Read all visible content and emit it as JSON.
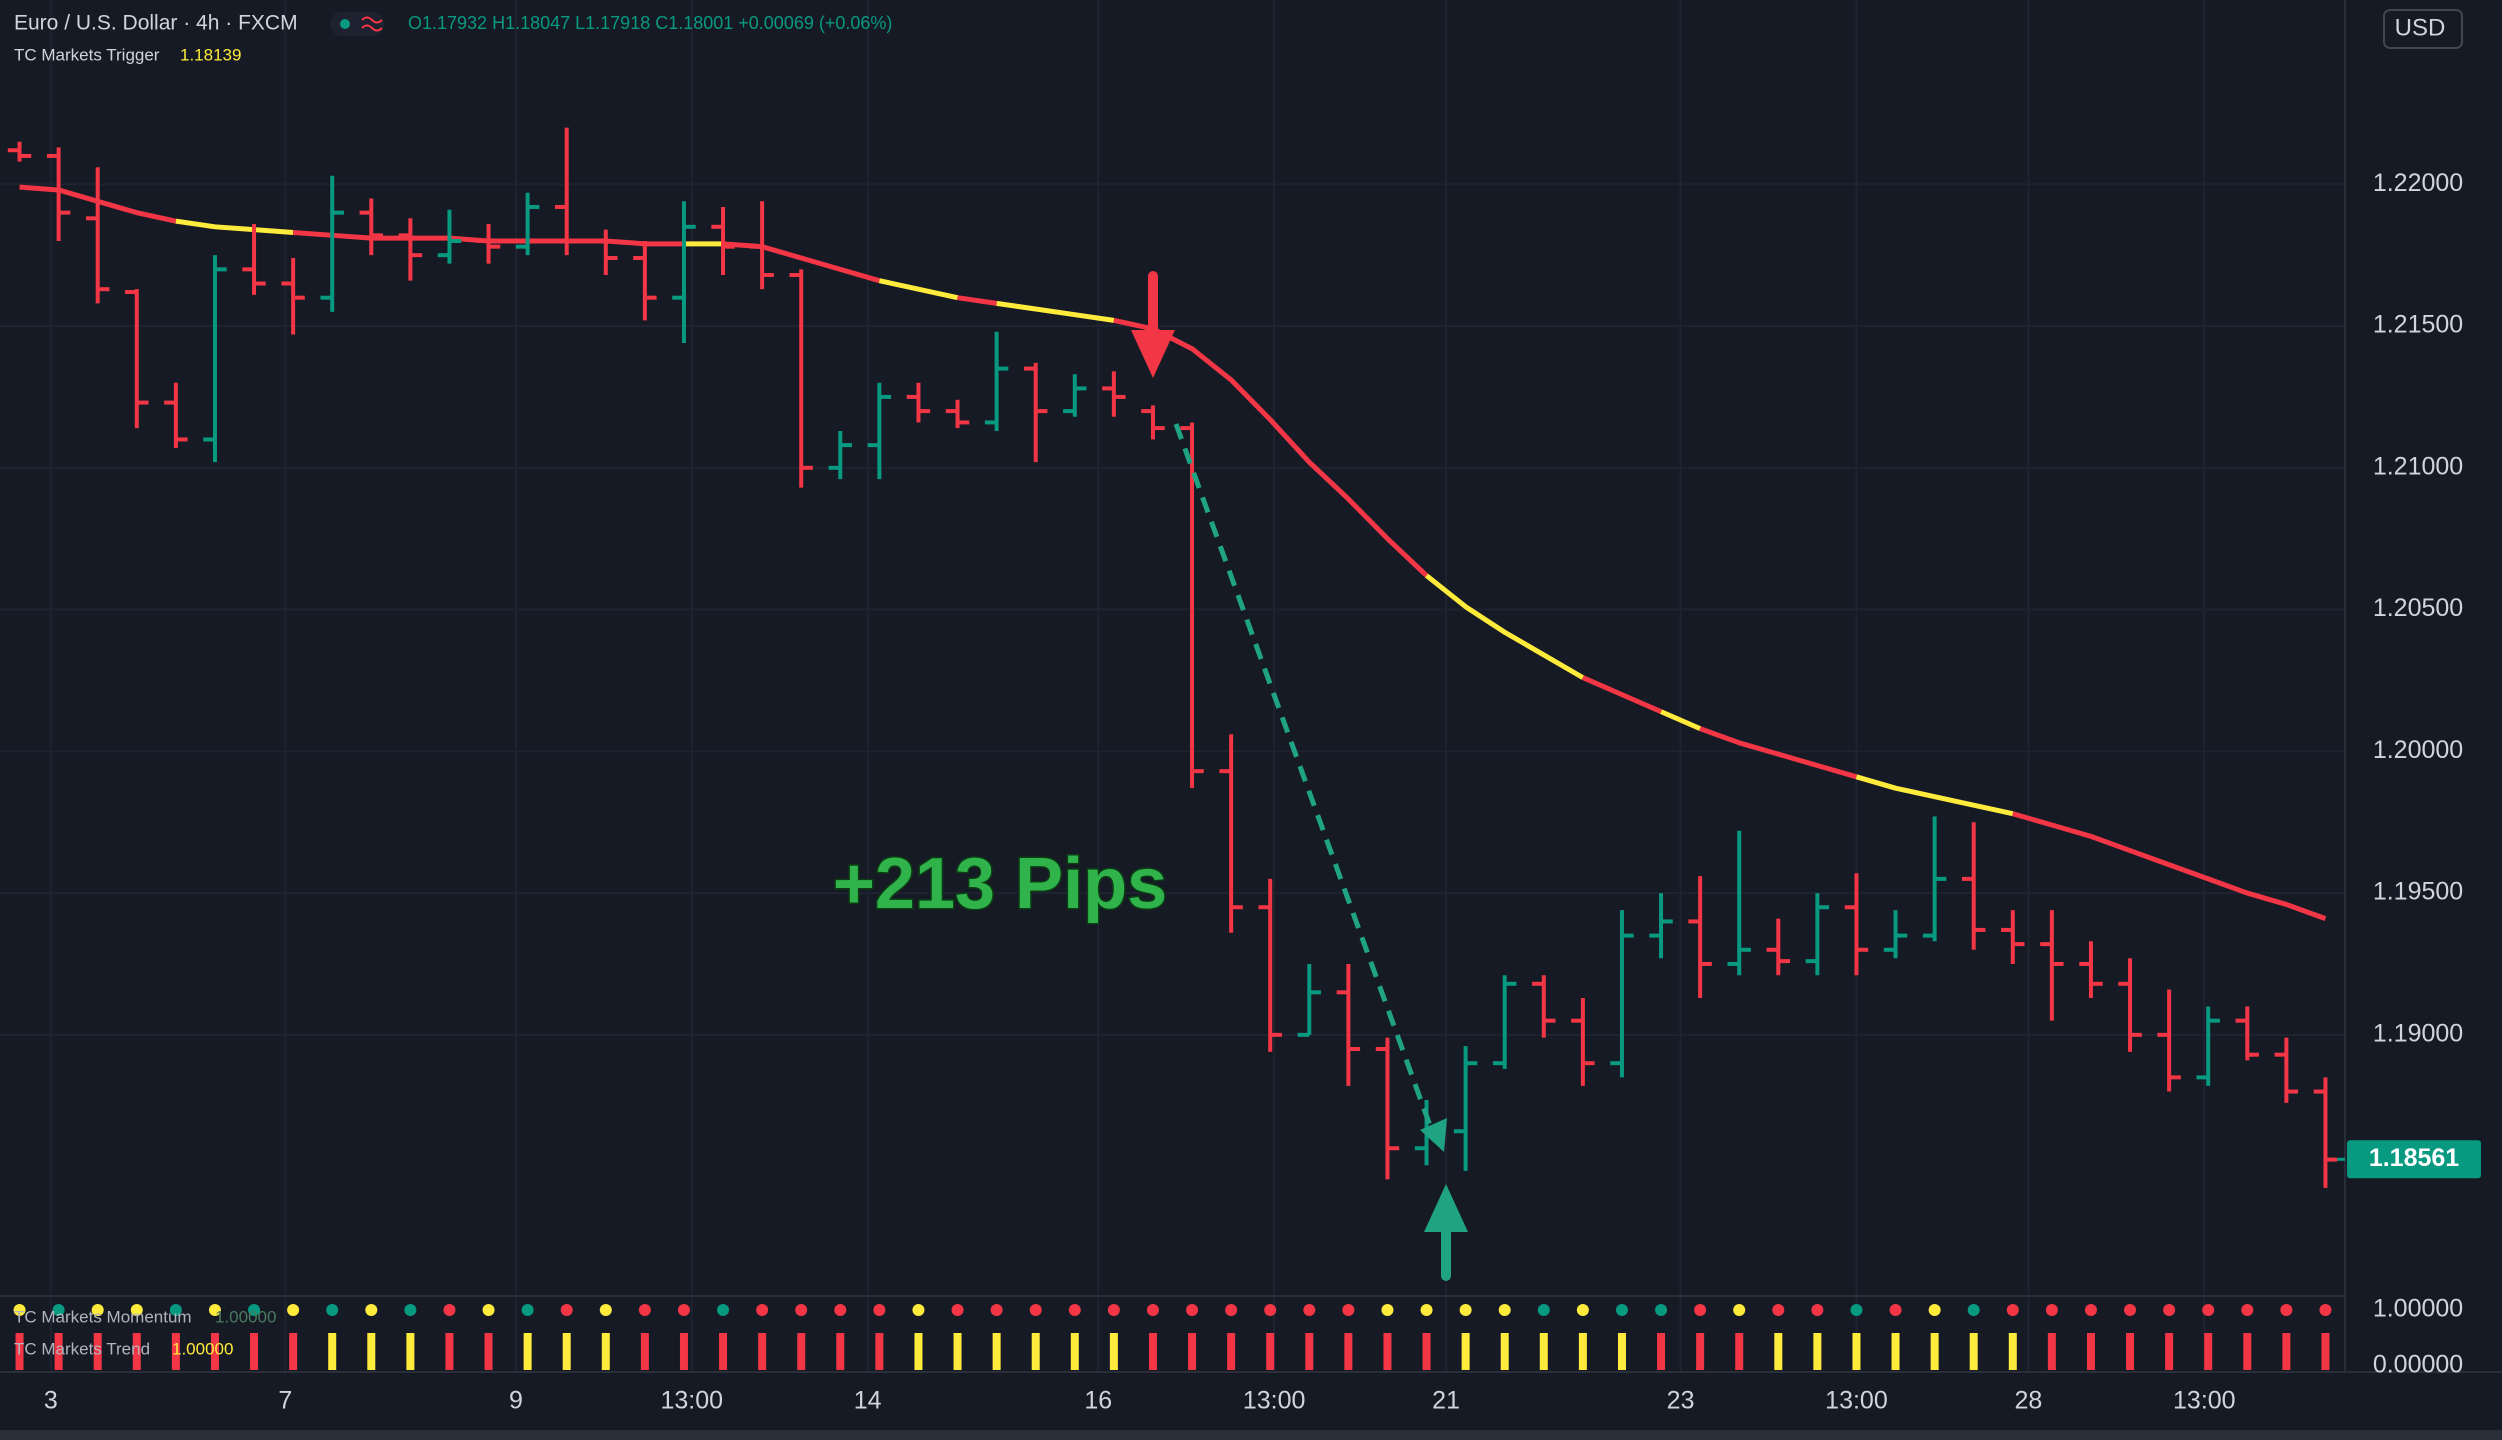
{
  "chart_data": {
    "type": "ohlc",
    "title": "Euro / U.S. Dollar · 4h · FXCM",
    "ohlc_header": "O1.17932 H1.18047 L1.17918 C1.18001 +0.00069 (+0.06%)",
    "currency": "USD",
    "annotation": "+213 Pips",
    "up_color": "#089981",
    "down_color": "#f23645",
    "open": [
      1.2212,
      1.221,
      1.2188,
      1.2162,
      1.2123,
      1.211,
      1.217,
      1.2165,
      1.216,
      1.219,
      1.2182,
      1.2175,
      1.218,
      1.2178,
      1.2192,
      1.218,
      1.2174,
      1.216,
      1.2185,
      1.2178,
      1.2168,
      1.21,
      1.2108,
      1.2125,
      1.212,
      1.2116,
      1.2135,
      1.212,
      1.2128,
      1.212,
      1.2114,
      1.1993,
      1.1945,
      1.19,
      1.1915,
      1.1895,
      1.186,
      1.1866,
      1.189,
      1.1918,
      1.1905,
      1.189,
      1.1935,
      1.194,
      1.1925,
      1.193,
      1.1926,
      1.1945,
      1.193,
      1.1935,
      1.1955,
      1.1937,
      1.1932,
      1.1925,
      1.1918,
      1.19,
      1.1885,
      1.1905,
      1.1893,
      1.188
    ],
    "high": [
      1.2215,
      1.2213,
      1.2206,
      1.2163,
      1.213,
      1.2175,
      1.2186,
      1.2174,
      1.2203,
      1.2195,
      1.2188,
      1.2191,
      1.2186,
      1.2197,
      1.222,
      1.2184,
      1.218,
      1.2194,
      1.2192,
      1.2194,
      1.217,
      1.2113,
      1.213,
      1.213,
      1.2124,
      1.2148,
      1.2137,
      1.2133,
      1.2134,
      1.2122,
      1.2116,
      1.2006,
      1.1955,
      1.1925,
      1.1925,
      1.1899,
      1.1877,
      1.1896,
      1.1921,
      1.1921,
      1.1913,
      1.1944,
      1.195,
      1.1956,
      1.1972,
      1.1941,
      1.195,
      1.1957,
      1.1944,
      1.1977,
      1.1975,
      1.1944,
      1.1944,
      1.1933,
      1.1927,
      1.1916,
      1.191,
      1.191,
      1.1899,
      1.1885
    ],
    "low": [
      1.2208,
      1.218,
      1.2158,
      1.2114,
      1.2107,
      1.2102,
      1.2161,
      1.2147,
      1.2155,
      1.2175,
      1.2166,
      1.2172,
      1.2172,
      1.2175,
      1.2175,
      1.2168,
      1.2152,
      1.2144,
      1.2168,
      1.2163,
      1.2093,
      1.2096,
      1.2096,
      1.2116,
      1.2114,
      1.2113,
      1.2102,
      1.2118,
      1.2118,
      1.211,
      1.1987,
      1.1936,
      1.1894,
      1.19,
      1.1882,
      1.1849,
      1.1854,
      1.1852,
      1.1888,
      1.1899,
      1.1882,
      1.1885,
      1.1927,
      1.1913,
      1.1921,
      1.1921,
      1.1921,
      1.1921,
      1.1927,
      1.1933,
      1.193,
      1.1925,
      1.1905,
      1.1913,
      1.1894,
      1.188,
      1.1882,
      1.1891,
      1.1876,
      1.1846
    ],
    "close": [
      1.221,
      1.219,
      1.2163,
      1.2123,
      1.211,
      1.217,
      1.2165,
      1.216,
      1.219,
      1.2182,
      1.2175,
      1.218,
      1.2178,
      1.2192,
      1.218,
      1.2174,
      1.216,
      1.2185,
      1.2178,
      1.2168,
      1.21,
      1.2108,
      1.2125,
      1.212,
      1.2116,
      1.2135,
      1.212,
      1.2128,
      1.2125,
      1.2114,
      1.1993,
      1.1945,
      1.19,
      1.1915,
      1.1895,
      1.186,
      1.1866,
      1.189,
      1.1918,
      1.1905,
      1.189,
      1.1935,
      1.194,
      1.1925,
      1.193,
      1.1926,
      1.1945,
      1.193,
      1.1935,
      1.1955,
      1.1937,
      1.1932,
      1.1925,
      1.1918,
      1.19,
      1.1885,
      1.1905,
      1.1893,
      1.188,
      1.1856
    ],
    "last_price": 1.18561,
    "ylim": [
      1.181,
      1.2265
    ],
    "yticks": [
      {
        "value": 1.19,
        "label": "1.19000"
      },
      {
        "value": 1.195,
        "label": "1.19500"
      },
      {
        "value": 1.2,
        "label": "1.20000"
      },
      {
        "value": 1.205,
        "label": "1.20500"
      },
      {
        "value": 1.21,
        "label": "1.21000"
      },
      {
        "value": 1.215,
        "label": "1.21500"
      },
      {
        "value": 1.22,
        "label": "1.22000"
      }
    ],
    "xticks": [
      {
        "value": 0.8,
        "label": "3"
      },
      {
        "value": 6.8,
        "label": "7"
      },
      {
        "value": 12.7,
        "label": "9"
      },
      {
        "value": 17.2,
        "label": "13:00"
      },
      {
        "value": 21.7,
        "label": "14"
      },
      {
        "value": 27.6,
        "label": "16"
      },
      {
        "value": 32.1,
        "label": "13:00"
      },
      {
        "value": 36.5,
        "label": "21"
      },
      {
        "value": 42.5,
        "label": "23"
      },
      {
        "value": 47,
        "label": "13:00"
      },
      {
        "value": 51.4,
        "label": "28"
      },
      {
        "value": 55.9,
        "label": "13:00"
      }
    ],
    "grid": true,
    "trigger": {
      "name": "TC Markets Trigger",
      "value": 1.18139,
      "values": [
        1.2199,
        1.2198,
        1.2194,
        1.219,
        1.2187,
        1.2185,
        1.2184,
        1.2183,
        1.2182,
        1.2181,
        1.2181,
        1.2181,
        1.218,
        1.218,
        1.218,
        1.218,
        1.2179,
        1.2179,
        1.2179,
        1.2178,
        1.2174,
        1.217,
        1.2166,
        1.2163,
        1.216,
        1.2158,
        1.2156,
        1.2154,
        1.2152,
        1.2149,
        1.2142,
        1.2131,
        1.2117,
        1.2102,
        1.2089,
        1.2075,
        1.2062,
        1.2051,
        1.2042,
        1.2034,
        1.2026,
        1.202,
        1.2014,
        1.2008,
        1.2003,
        1.1999,
        1.1995,
        1.1991,
        1.1987,
        1.1984,
        1.1981,
        1.1978,
        1.1974,
        1.197,
        1.1965,
        1.196,
        1.1955,
        1.195,
        1.1946,
        1.1941
      ],
      "colors": [
        "#f23645",
        "#f23645",
        "#f23645",
        "#f23645",
        "#f23645",
        "#ffeb3b",
        "#ffeb3b",
        "#ffeb3b",
        "#f23645",
        "#f23645",
        "#f23645",
        "#f23645",
        "#f23645",
        "#f23645",
        "#f23645",
        "#f23645",
        "#f23645",
        "#f23645",
        "#ffeb3b",
        "#f23645",
        "#f23645",
        "#f23645",
        "#f23645",
        "#ffeb3b",
        "#ffeb3b",
        "#f23645",
        "#ffeb3b",
        "#ffeb3b",
        "#ffeb3b",
        "#f23645",
        "#f23645",
        "#f23645",
        "#f23645",
        "#f23645",
        "#f23645",
        "#f23645",
        "#f23645",
        "#ffeb3b",
        "#ffeb3b",
        "#ffeb3b",
        "#ffeb3b",
        "#f23645",
        "#f23645",
        "#ffeb3b",
        "#f23645",
        "#f23645",
        "#f23645",
        "#f23645",
        "#ffeb3b",
        "#ffeb3b",
        "#ffeb3b",
        "#ffeb3b",
        "#f23645",
        "#f23645",
        "#f23645",
        "#f23645",
        "#f23645",
        "#f23645",
        "#f23645",
        "#f23645"
      ]
    },
    "momentum": {
      "name": "TC Markets Momentum",
      "value": {
        "value": 1,
        "label": "1.00000"
      },
      "yticks": [
        {
          "value": 1,
          "label": "1.00000"
        }
      ],
      "colors": [
        "#ffeb3b",
        "#089981",
        "#ffeb3b",
        "#ffeb3b",
        "#089981",
        "#ffeb3b",
        "#089981",
        "#ffeb3b",
        "#089981",
        "#ffeb3b",
        "#089981",
        "#f23645",
        "#ffeb3b",
        "#089981",
        "#f23645",
        "#ffeb3b",
        "#f23645",
        "#f23645",
        "#089981",
        "#f23645",
        "#f23645",
        "#f23645",
        "#f23645",
        "#ffeb3b",
        "#f23645",
        "#f23645",
        "#f23645",
        "#f23645",
        "#f23645",
        "#f23645",
        "#f23645",
        "#f23645",
        "#f23645",
        "#f23645",
        "#f23645",
        "#ffeb3b",
        "#ffeb3b",
        "#ffeb3b",
        "#ffeb3b",
        "#089981",
        "#ffeb3b",
        "#089981",
        "#089981",
        "#f23645",
        "#ffeb3b",
        "#f23645",
        "#f23645",
        "#089981",
        "#f23645",
        "#ffeb3b",
        "#089981",
        "#f23645",
        "#f23645",
        "#f23645",
        "#f23645",
        "#f23645",
        "#f23645",
        "#f23645",
        "#f23645",
        "#f23645"
      ]
    },
    "trend": {
      "name": "TC Markets Trend",
      "value": {
        "value": 1,
        "label": "1.00000"
      },
      "yticks": [
        {
          "value": 0,
          "label": "0.00000"
        }
      ],
      "colors": [
        "#f23645",
        "#f23645",
        "#f23645",
        "#f23645",
        "#f23645",
        "#f23645",
        "#f23645",
        "#f23645",
        "#ffeb3b",
        "#ffeb3b",
        "#ffeb3b",
        "#f23645",
        "#f23645",
        "#ffeb3b",
        "#ffeb3b",
        "#ffeb3b",
        "#f23645",
        "#f23645",
        "#f23645",
        "#f23645",
        "#f23645",
        "#f23645",
        "#f23645",
        "#ffeb3b",
        "#ffeb3b",
        "#ffeb3b",
        "#ffeb3b",
        "#ffeb3b",
        "#ffeb3b",
        "#f23645",
        "#f23645",
        "#f23645",
        "#f23645",
        "#f23645",
        "#f23645",
        "#f23645",
        "#f23645",
        "#ffeb3b",
        "#ffeb3b",
        "#ffeb3b",
        "#ffeb3b",
        "#ffeb3b",
        "#f23645",
        "#f23645",
        "#f23645",
        "#ffeb3b",
        "#ffeb3b",
        "#ffeb3b",
        "#ffeb3b",
        "#ffeb3b",
        "#ffeb3b",
        "#ffeb3b",
        "#f23645",
        "#f23645",
        "#f23645",
        "#f23645",
        "#f23645",
        "#f23645",
        "#f23645",
        "#f23645"
      ]
    }
  }
}
